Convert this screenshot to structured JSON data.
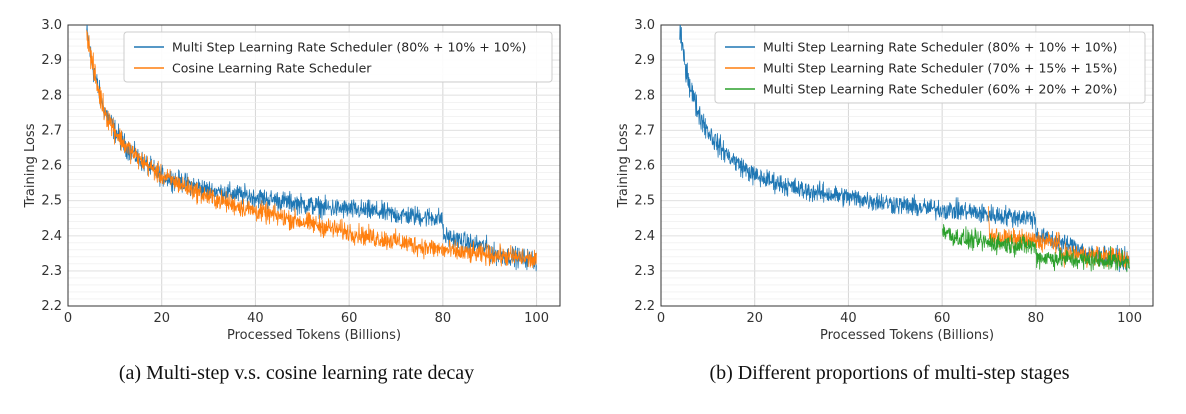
{
  "chart_data": [
    {
      "type": "line",
      "xlabel": "Processed Tokens (Billions)",
      "ylabel": "Training Loss",
      "xlim": [
        0,
        105
      ],
      "ylim": [
        2.2,
        3.0
      ],
      "xticks": [
        0,
        20,
        40,
        60,
        80,
        100
      ],
      "yticks": [
        2.2,
        2.3,
        2.4,
        2.5,
        2.6,
        2.7,
        2.8,
        2.9,
        3.0
      ],
      "grid": true,
      "legend_position": "top-right",
      "series": [
        {
          "name": "Multi Step Learning Rate Scheduler (80% + 10% + 10%)",
          "color": "#1f77b4",
          "x": [
            4,
            5,
            6,
            7,
            8,
            10,
            12,
            15,
            20,
            25,
            30,
            35,
            40,
            45,
            50,
            55,
            60,
            65,
            70,
            75,
            79.9,
            80.1,
            85,
            89.9,
            90.1,
            95,
            100
          ],
          "y": [
            2.98,
            2.9,
            2.84,
            2.79,
            2.75,
            2.7,
            2.66,
            2.62,
            2.57,
            2.55,
            2.53,
            2.52,
            2.51,
            2.5,
            2.49,
            2.48,
            2.475,
            2.47,
            2.46,
            2.455,
            2.45,
            2.4,
            2.38,
            2.365,
            2.35,
            2.34,
            2.33
          ]
        },
        {
          "name": "Cosine Learning Rate Scheduler",
          "color": "#ff7f0e",
          "x": [
            4,
            5,
            6,
            7,
            8,
            10,
            12,
            15,
            20,
            25,
            30,
            35,
            40,
            45,
            50,
            55,
            60,
            65,
            70,
            75,
            80,
            85,
            90,
            95,
            100
          ],
          "y": [
            2.98,
            2.9,
            2.84,
            2.79,
            2.75,
            2.7,
            2.66,
            2.62,
            2.57,
            2.54,
            2.51,
            2.49,
            2.47,
            2.455,
            2.44,
            2.425,
            2.41,
            2.395,
            2.385,
            2.37,
            2.36,
            2.35,
            2.345,
            2.34,
            2.33
          ]
        }
      ]
    },
    {
      "type": "line",
      "xlabel": "Processed Tokens (Billions)",
      "ylabel": "Training Loss",
      "xlim": [
        0,
        105
      ],
      "ylim": [
        2.2,
        3.0
      ],
      "xticks": [
        0,
        20,
        40,
        60,
        80,
        100
      ],
      "yticks": [
        2.2,
        2.3,
        2.4,
        2.5,
        2.6,
        2.7,
        2.8,
        2.9,
        3.0
      ],
      "grid": true,
      "legend_position": "top-right",
      "series": [
        {
          "name": "Multi Step Learning Rate Scheduler (80% + 10% + 10%)",
          "color": "#1f77b4",
          "x": [
            4,
            5,
            6,
            7,
            8,
            10,
            12,
            15,
            20,
            25,
            30,
            35,
            40,
            45,
            50,
            55,
            60,
            65,
            70,
            75,
            79.9,
            80.1,
            85,
            89.9,
            90.1,
            95,
            100
          ],
          "y": [
            2.98,
            2.9,
            2.84,
            2.79,
            2.75,
            2.7,
            2.66,
            2.62,
            2.57,
            2.55,
            2.53,
            2.52,
            2.51,
            2.5,
            2.49,
            2.48,
            2.475,
            2.47,
            2.46,
            2.455,
            2.45,
            2.4,
            2.38,
            2.365,
            2.35,
            2.34,
            2.33
          ]
        },
        {
          "name": "Multi Step Learning Rate Scheduler (70% + 15% + 15%)",
          "color": "#ff7f0e",
          "x": [
            69.9,
            70.1,
            75,
            80,
            84.9,
            85.1,
            90,
            95,
            100
          ],
          "y": [
            2.47,
            2.4,
            2.39,
            2.385,
            2.38,
            2.35,
            2.345,
            2.34,
            2.33
          ]
        },
        {
          "name": "Multi Step Learning Rate Scheduler (60% + 20% + 20%)",
          "color": "#2ca02c",
          "x": [
            60.1,
            62,
            65,
            70,
            75,
            79.9,
            80.1,
            85,
            90,
            95,
            100
          ],
          "y": [
            2.42,
            2.4,
            2.39,
            2.38,
            2.375,
            2.37,
            2.34,
            2.335,
            2.33,
            2.33,
            2.325
          ]
        }
      ]
    }
  ],
  "captions": {
    "a": "(a)  Multi-step v.s. cosine learning rate decay",
    "b": "(b)  Different proportions of multi-step stages"
  }
}
